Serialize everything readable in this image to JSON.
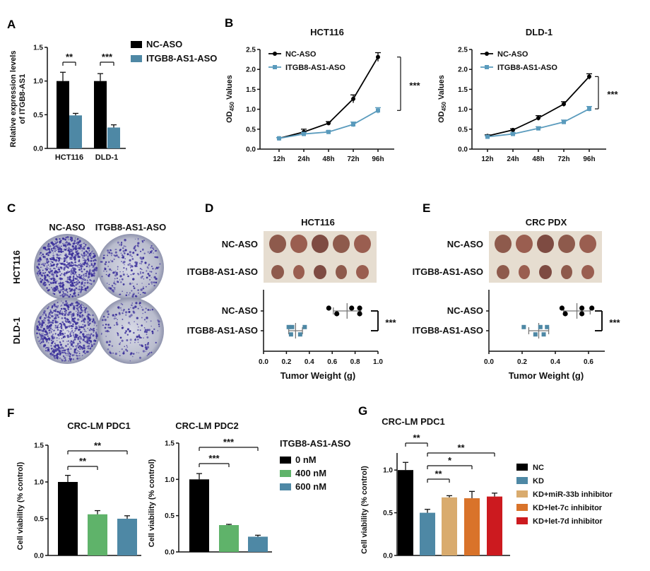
{
  "figure": {
    "panel_labels": [
      "A",
      "B",
      "C",
      "D",
      "E",
      "F",
      "G"
    ]
  },
  "panel_c": {
    "columns": [
      "NC-ASO",
      "ITGB8-AS1-ASO"
    ],
    "rows": [
      "HCT116",
      "DLD-1"
    ]
  },
  "panel_d": {
    "title": "HCT116",
    "photo_rows": [
      "NC-ASO",
      "ITGB8-AS1-ASO"
    ]
  },
  "panel_e": {
    "title": "CRC PDX",
    "photo_rows": [
      "NC-ASO",
      "ITGB8-AS1-ASO"
    ]
  },
  "chart_data": [
    {
      "id": "A",
      "type": "bar",
      "title": "",
      "categories": [
        "HCT116",
        "DLD-1"
      ],
      "series": [
        {
          "name": "NC-ASO",
          "values": [
            1.0,
            1.0
          ],
          "errors": [
            0.13,
            0.11
          ],
          "color": "#000000"
        },
        {
          "name": "ITGB8-AS1-ASO",
          "values": [
            0.49,
            0.31
          ],
          "errors": [
            0.03,
            0.04
          ],
          "color": "#4e88a5"
        }
      ],
      "ylabel": [
        "Relative expression levels",
        "of ITGB8-AS1"
      ],
      "ylim": [
        0,
        1.5
      ],
      "yticks": [
        "0.0",
        "0.5",
        "1.0",
        "1.5"
      ],
      "legend": "right",
      "significance": [
        {
          "category": 0,
          "label": "**"
        },
        {
          "category": 1,
          "label": "***"
        }
      ]
    },
    {
      "id": "B1",
      "type": "line",
      "title": "HCT116",
      "x": [
        "12h",
        "24h",
        "48h",
        "72h",
        "96h"
      ],
      "series": [
        {
          "name": "NC-ASO",
          "values": [
            0.27,
            0.43,
            0.65,
            1.26,
            2.31
          ],
          "errors": [
            0.02,
            0.07,
            0.04,
            0.1,
            0.11
          ],
          "color": "#000000",
          "marker": "circle"
        },
        {
          "name": "ITGB8-AS1-ASO",
          "values": [
            0.27,
            0.38,
            0.43,
            0.62,
            0.97
          ],
          "errors": [
            0.02,
            0.04,
            0.03,
            0.06,
            0.07
          ],
          "color": "#5a9bbd",
          "marker": "square"
        }
      ],
      "ylabel": [
        "OD",
        "450",
        " Values"
      ],
      "ylim": [
        0,
        2.5
      ],
      "yticks": [
        "0.0",
        "0.5",
        "1.0",
        "1.5",
        "2.0",
        "2.5"
      ],
      "legend": "top-left",
      "significance": "***"
    },
    {
      "id": "B2",
      "type": "line",
      "title": "DLD-1",
      "x": [
        "12h",
        "24h",
        "48h",
        "72h",
        "96h"
      ],
      "series": [
        {
          "name": "NC-ASO",
          "values": [
            0.33,
            0.48,
            0.78,
            1.13,
            1.82
          ],
          "errors": [
            0.03,
            0.03,
            0.06,
            0.06,
            0.07
          ],
          "color": "#000000",
          "marker": "circle"
        },
        {
          "name": "ITGB8-AS1-ASO",
          "values": [
            0.31,
            0.38,
            0.52,
            0.68,
            1.01
          ],
          "errors": [
            0.02,
            0.03,
            0.04,
            0.05,
            0.06
          ],
          "color": "#5a9bbd",
          "marker": "square"
        }
      ],
      "ylabel": [
        "OD",
        "450",
        " Values"
      ],
      "ylim": [
        0,
        2.5
      ],
      "yticks": [
        "0.0",
        "0.5",
        "1.0",
        "1.5",
        "2.0",
        "2.5"
      ],
      "legend": "top-left",
      "significance": "***"
    },
    {
      "id": "D",
      "type": "scatter",
      "title": "HCT116",
      "categories": [
        "NC-ASO",
        "ITGB8-AS1-ASO"
      ],
      "series": [
        {
          "name": "NC-ASO",
          "values": [
            0.57,
            0.64,
            0.77,
            0.84,
            0.84
          ],
          "mean": 0.73,
          "sd": 0.12,
          "color": "#000000"
        },
        {
          "name": "ITGB8-AS1-ASO",
          "values": [
            0.22,
            0.24,
            0.25,
            0.32,
            0.36
          ],
          "mean": 0.28,
          "sd": 0.06,
          "color": "#4e88a5"
        }
      ],
      "xlabel": "Tumor Weight (g)",
      "xlim": [
        0,
        1.0
      ],
      "xticks": [
        "0.0",
        "0.2",
        "0.4",
        "0.6",
        "0.8",
        "1.0"
      ],
      "significance": "***"
    },
    {
      "id": "E",
      "type": "scatter",
      "title": "CRC PDX",
      "categories": [
        "NC-ASO",
        "ITGB8-AS1-ASO"
      ],
      "series": [
        {
          "name": "NC-ASO",
          "values": [
            0.44,
            0.46,
            0.56,
            0.56,
            0.62
          ],
          "mean": 0.53,
          "sd": 0.08,
          "color": "#000000"
        },
        {
          "name": "ITGB8-AS1-ASO",
          "values": [
            0.21,
            0.28,
            0.31,
            0.33,
            0.35
          ],
          "mean": 0.3,
          "sd": 0.06,
          "color": "#4e88a5"
        }
      ],
      "xlabel": "Tumor Weight (g)",
      "xlim": [
        0,
        0.7
      ],
      "xticks": [
        "0.0",
        "0.2",
        "0.4",
        "0.6"
      ],
      "significance": "***"
    },
    {
      "id": "F1",
      "type": "bar",
      "title": "CRC-LM PDC1",
      "categories": [
        "0 nM",
        "400 nM",
        "600 nM"
      ],
      "values": [
        1.0,
        0.56,
        0.5
      ],
      "errors": [
        0.09,
        0.05,
        0.04
      ],
      "colors": [
        "#000000",
        "#5fb36a",
        "#4e88a5"
      ],
      "ylabel": "Cell viability (% control)",
      "ylim": [
        0,
        1.5
      ],
      "yticks": [
        "0.0",
        "0.5",
        "1.0",
        "1.5"
      ],
      "significance": [
        {
          "from": 0,
          "to": 1,
          "label": "**"
        },
        {
          "from": 0,
          "to": 2,
          "label": "**"
        }
      ]
    },
    {
      "id": "F2",
      "type": "bar",
      "title": "CRC-LM PDC2",
      "categories": [
        "0 nM",
        "400 nM",
        "600 nM"
      ],
      "values": [
        1.0,
        0.37,
        0.21
      ],
      "errors": [
        0.08,
        0.01,
        0.02
      ],
      "colors": [
        "#000000",
        "#5fb36a",
        "#4e88a5"
      ],
      "ylabel": "Cell viability (% control)",
      "ylim": [
        0,
        1.5
      ],
      "yticks": [
        "0.0",
        "0.5",
        "1.0",
        "1.5"
      ],
      "significance": [
        {
          "from": 0,
          "to": 1,
          "label": "***"
        },
        {
          "from": 0,
          "to": 2,
          "label": "***"
        }
      ],
      "legend_title": "ITGB8-AS1-ASO",
      "legend": "right"
    },
    {
      "id": "G",
      "type": "bar",
      "title": "CRC-LM PDC1",
      "categories": [
        "NC",
        "KD",
        "KD+miR-33b inhibitor",
        "KD+let-7c inhibitor",
        "KD+let-7d inhibitor"
      ],
      "values": [
        1.0,
        0.5,
        0.68,
        0.67,
        0.69
      ],
      "errors": [
        0.09,
        0.04,
        0.02,
        0.08,
        0.04
      ],
      "colors": [
        "#000000",
        "#4e88a5",
        "#d9ab6e",
        "#d9732a",
        "#cc1a1f"
      ],
      "ylabel": "Cell viability (% control)",
      "ylim": [
        0,
        1.2
      ],
      "yticks": [
        "0.0",
        "0.5",
        "1.0"
      ],
      "significance": [
        {
          "from": 0,
          "to": 1,
          "label": "**"
        },
        {
          "from": 1,
          "to": 2,
          "label": "**"
        },
        {
          "from": 1,
          "to": 3,
          "label": "*"
        },
        {
          "from": 1,
          "to": 4,
          "label": "**"
        }
      ],
      "legend": "right"
    }
  ]
}
